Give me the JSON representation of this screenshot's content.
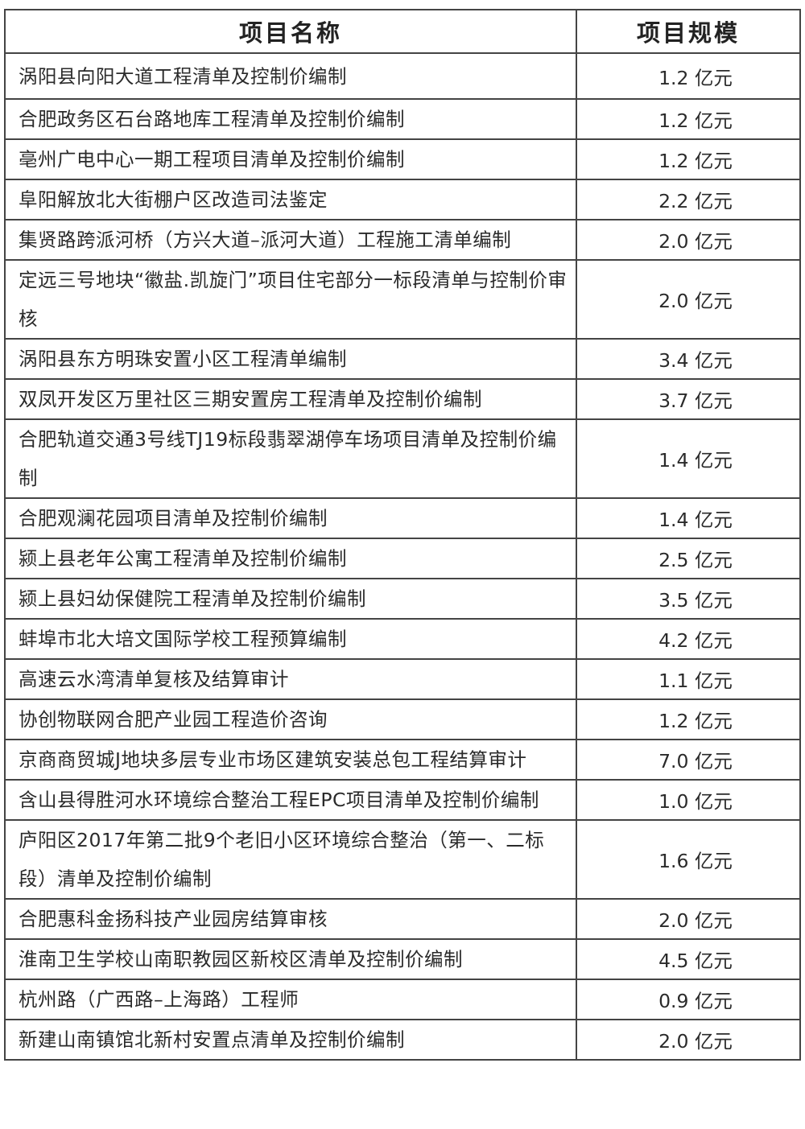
{
  "table": {
    "headers": [
      "项目名称",
      "项目规模"
    ],
    "rows": [
      {
        "name": "涡阳县向阳大道工程清单及控制价编制",
        "scale": "1.2 亿元"
      },
      {
        "name": "合肥政务区石台路地库工程清单及控制价编制",
        "scale": "1.2 亿元"
      },
      {
        "name": "亳州广电中心一期工程项目清单及控制价编制",
        "scale": "1.2 亿元"
      },
      {
        "name": "阜阳解放北大街棚户区改造司法鉴定",
        "scale": "2.2 亿元"
      },
      {
        "name": "集贤路跨派河桥（方兴大道–派河大道）工程施工清单编制",
        "scale": "2.0 亿元"
      },
      {
        "name": "定远三号地块“徽盐.凯旋门”项目住宅部分一标段清单与控制价审核",
        "scale": "2.0 亿元"
      },
      {
        "name": "涡阳县东方明珠安置小区工程清单编制",
        "scale": "3.4 亿元"
      },
      {
        "name": "双凤开发区万里社区三期安置房工程清单及控制价编制",
        "scale": "3.7 亿元"
      },
      {
        "name": "合肥轨道交通3号线TJ19标段翡翠湖停车场项目清单及控制价编制",
        "scale": "1.4 亿元"
      },
      {
        "name": "合肥观澜花园项目清单及控制价编制",
        "scale": "1.4 亿元"
      },
      {
        "name": "颍上县老年公寓工程清单及控制价编制",
        "scale": "2.5 亿元"
      },
      {
        "name": "颍上县妇幼保健院工程清单及控制价编制",
        "scale": "3.5 亿元"
      },
      {
        "name": "蚌埠市北大培文国际学校工程预算编制",
        "scale": "4.2 亿元"
      },
      {
        "name": "高速云水湾清单复核及结算审计",
        "scale": "1.1 亿元"
      },
      {
        "name": "协创物联网合肥产业园工程造价咨询",
        "scale": "1.2 亿元"
      },
      {
        "name": "京商商贸城J地块多层专业市场区建筑安装总包工程结算审计",
        "scale": "7.0 亿元"
      },
      {
        "name": "含山县得胜河水环境综合整治工程EPC项目清单及控制价编制",
        "scale": "1.0 亿元"
      },
      {
        "name": "庐阳区2017年第二批9个老旧小区环境综合整治（第一、二标段）清单及控制价编制",
        "scale": "1.6 亿元"
      },
      {
        "name": "合肥惠科金扬科技产业园房结算审核",
        "scale": "2.0 亿元"
      },
      {
        "name": "淮南卫生学校山南职教园区新校区清单及控制价编制",
        "scale": "4.5 亿元"
      },
      {
        "name": "杭州路（广西路–上海路）工程师",
        "scale": "0.9 亿元"
      },
      {
        "name": "新建山南镇馆北新村安置点清单及控制价编制",
        "scale": "2.0 亿元"
      }
    ]
  }
}
